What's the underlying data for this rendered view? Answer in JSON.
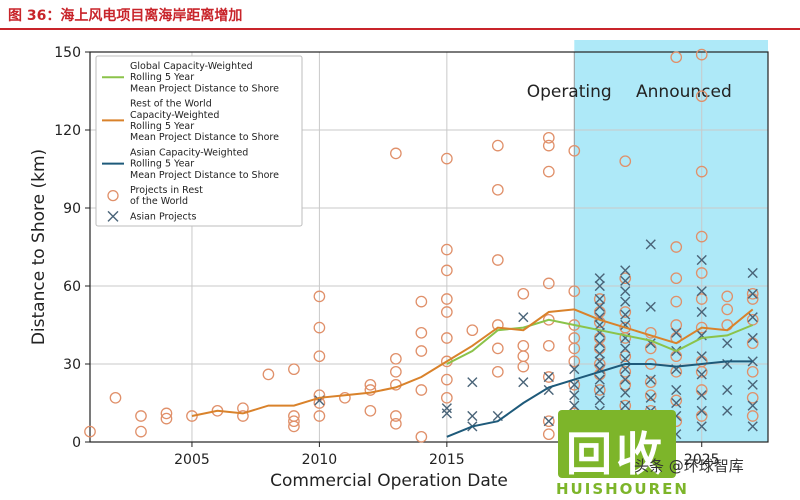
{
  "header": {
    "figure_title": "图 36：海上风电项目离海岸距离增加"
  },
  "colors": {
    "accent_red": "#c8242a",
    "announced_shade": "#aee9f8",
    "global_line": "#8bc34a",
    "row_line": "#d9822b",
    "asian_line": "#1e5a7a",
    "row_marker": "#e0906a",
    "asian_marker": "#4a6478"
  },
  "watermark": {
    "text": "回收",
    "sub": "HUISHOUREN",
    "caption": "头条 @环球智库"
  },
  "chart_data": {
    "type": "scatter",
    "title": "",
    "xlabel": "Commercial Operation Date",
    "ylabel": "Distance to Shore (km)",
    "xlim": [
      2001,
      2027.6
    ],
    "ylim": [
      0,
      150
    ],
    "xticks": [
      2005,
      2010,
      2015,
      2025
    ],
    "xtick_labels": [
      "2005",
      "2010",
      "2015",
      "2025"
    ],
    "yticks": [
      0,
      30,
      60,
      90,
      120,
      150
    ],
    "ytick_labels": [
      "0",
      "30",
      "60",
      "90",
      "120",
      "150"
    ],
    "grid": true,
    "legend_position": "top-left",
    "annotations": [
      {
        "text": "Operating",
        "x": 2019.8,
        "y": 135
      },
      {
        "text": "Announced",
        "x": 2024.3,
        "y": 135
      }
    ],
    "shaded_regions": [
      {
        "label": "Announced",
        "x_from": 2020.0,
        "x_to": 2027.6
      }
    ],
    "series": [
      {
        "name": "Global Capacity-Weighted Rolling 5 Year Mean Project Distance to Shore",
        "legend_lines": [
          "Global Capacity-Weighted",
          "Rolling 5 Year",
          "Mean Project Distance to Shore"
        ],
        "kind": "line",
        "color": "#8bc34a",
        "x": [
          2015,
          2016,
          2017,
          2018,
          2019,
          2020,
          2021,
          2022,
          2023,
          2024,
          2025,
          2026,
          2027
        ],
        "y": [
          30,
          35,
          43,
          44,
          47,
          45,
          43,
          41,
          39,
          35,
          40,
          41,
          45
        ]
      },
      {
        "name": "Rest of the World Capacity-Weighted Rolling 5 Year Mean Project Distance to Shore",
        "legend_lines": [
          "Rest of the World",
          "Capacity-Weighted",
          "Rolling 5 Year",
          "Mean Project Distance to Shore"
        ],
        "kind": "line",
        "color": "#d9822b",
        "x": [
          2005,
          2006,
          2007,
          2008,
          2009,
          2010,
          2011,
          2012,
          2013,
          2014,
          2015,
          2016,
          2017,
          2018,
          2019,
          2020,
          2021,
          2022,
          2023,
          2024,
          2025,
          2026,
          2027
        ],
        "y": [
          10,
          12,
          11,
          14,
          14,
          17,
          18,
          19,
          21,
          25,
          31,
          37,
          44,
          43,
          50,
          51,
          47,
          44,
          41,
          38,
          44,
          43,
          51
        ]
      },
      {
        "name": "Asian Capacity-Weighted Rolling 5 Year Mean Project Distance to Shore",
        "legend_lines": [
          "Asian Capacity-Weighted",
          "Rolling 5 Year",
          "Mean Project Distance to Shore"
        ],
        "kind": "line",
        "color": "#1e5a7a",
        "x": [
          2015,
          2016,
          2017,
          2018,
          2019,
          2020,
          2021,
          2022,
          2023,
          2024,
          2025,
          2026,
          2027
        ],
        "y": [
          2,
          6,
          8,
          15,
          21,
          24,
          27,
          30,
          30,
          29,
          30,
          31,
          31
        ]
      },
      {
        "name": "Projects in Rest of the World",
        "legend_lines": [
          "Projects in Rest",
          "of the World"
        ],
        "kind": "scatter",
        "marker": "circle",
        "color": "#e0906a",
        "points": [
          [
            2001.0,
            4
          ],
          [
            2002.0,
            17
          ],
          [
            2003.0,
            4
          ],
          [
            2003.0,
            10
          ],
          [
            2004.0,
            9
          ],
          [
            2004.0,
            11
          ],
          [
            2005.0,
            10
          ],
          [
            2006.0,
            12
          ],
          [
            2007.0,
            13
          ],
          [
            2007.0,
            10
          ],
          [
            2008.0,
            26
          ],
          [
            2009.0,
            28
          ],
          [
            2009.0,
            10
          ],
          [
            2009.0,
            8
          ],
          [
            2009.0,
            6
          ],
          [
            2010.0,
            56
          ],
          [
            2010.0,
            44
          ],
          [
            2010.0,
            33
          ],
          [
            2010.0,
            18
          ],
          [
            2010.0,
            15
          ],
          [
            2010.0,
            10
          ],
          [
            2011.0,
            17
          ],
          [
            2012.0,
            20
          ],
          [
            2012.0,
            12
          ],
          [
            2012.0,
            22
          ],
          [
            2013.0,
            111
          ],
          [
            2013.0,
            32
          ],
          [
            2013.0,
            27
          ],
          [
            2013.0,
            22
          ],
          [
            2013.0,
            10
          ],
          [
            2013.0,
            7
          ],
          [
            2014.0,
            54
          ],
          [
            2014.0,
            42
          ],
          [
            2014.0,
            35
          ],
          [
            2014.0,
            20
          ],
          [
            2014.0,
            2
          ],
          [
            2015.0,
            109
          ],
          [
            2015.0,
            74
          ],
          [
            2015.0,
            66
          ],
          [
            2015.0,
            55
          ],
          [
            2015.0,
            50
          ],
          [
            2015.0,
            40
          ],
          [
            2015.0,
            31
          ],
          [
            2015.0,
            24
          ],
          [
            2015.0,
            17
          ],
          [
            2016.0,
            43
          ],
          [
            2017.0,
            114
          ],
          [
            2017.0,
            97
          ],
          [
            2017.0,
            70
          ],
          [
            2017.0,
            45
          ],
          [
            2017.0,
            36
          ],
          [
            2017.0,
            27
          ],
          [
            2018.0,
            57
          ],
          [
            2018.0,
            37
          ],
          [
            2018.0,
            33
          ],
          [
            2018.0,
            29
          ],
          [
            2019.0,
            117
          ],
          [
            2019.0,
            114
          ],
          [
            2019.0,
            104
          ],
          [
            2019.0,
            61
          ],
          [
            2019.0,
            47
          ],
          [
            2019.0,
            37
          ],
          [
            2019.0,
            25
          ],
          [
            2019.0,
            8
          ],
          [
            2019.0,
            3
          ],
          [
            2020.0,
            112
          ],
          [
            2020.0,
            58
          ],
          [
            2020.0,
            45
          ],
          [
            2020.0,
            40
          ],
          [
            2020.0,
            36
          ],
          [
            2020.0,
            31
          ],
          [
            2020.0,
            22
          ],
          [
            2020.0,
            11
          ],
          [
            2021.0,
            55
          ],
          [
            2021.0,
            50
          ],
          [
            2021.0,
            46
          ],
          [
            2021.0,
            40
          ],
          [
            2021.0,
            36
          ],
          [
            2021.0,
            30
          ],
          [
            2021.0,
            26
          ],
          [
            2021.0,
            20
          ],
          [
            2021.0,
            10
          ],
          [
            2021.0,
            4
          ],
          [
            2022.0,
            108
          ],
          [
            2022.0,
            63
          ],
          [
            2022.0,
            50
          ],
          [
            2022.0,
            44
          ],
          [
            2022.0,
            40
          ],
          [
            2022.0,
            33
          ],
          [
            2022.0,
            27
          ],
          [
            2022.0,
            22
          ],
          [
            2022.0,
            14
          ],
          [
            2022.0,
            6
          ],
          [
            2023.0,
            42
          ],
          [
            2023.0,
            36
          ],
          [
            2023.0,
            30
          ],
          [
            2023.0,
            23
          ],
          [
            2023.0,
            18
          ],
          [
            2023.0,
            12
          ],
          [
            2024.0,
            148
          ],
          [
            2024.0,
            75
          ],
          [
            2024.0,
            63
          ],
          [
            2024.0,
            54
          ],
          [
            2024.0,
            45
          ],
          [
            2024.0,
            40
          ],
          [
            2024.0,
            33
          ],
          [
            2024.0,
            27
          ],
          [
            2024.0,
            16
          ],
          [
            2024.0,
            8
          ],
          [
            2025.0,
            149
          ],
          [
            2025.0,
            133
          ],
          [
            2025.0,
            104
          ],
          [
            2025.0,
            79
          ],
          [
            2025.0,
            65
          ],
          [
            2025.0,
            55
          ],
          [
            2025.0,
            44
          ],
          [
            2025.0,
            31
          ],
          [
            2025.0,
            27
          ],
          [
            2025.0,
            20
          ],
          [
            2025.0,
            10
          ],
          [
            2026.0,
            56
          ],
          [
            2026.0,
            51
          ],
          [
            2026.0,
            45
          ],
          [
            2027.0,
            57
          ],
          [
            2027.0,
            55
          ],
          [
            2027.0,
            47
          ],
          [
            2027.0,
            38
          ],
          [
            2027.0,
            27
          ],
          [
            2027.0,
            17
          ],
          [
            2027.0,
            10
          ]
        ]
      },
      {
        "name": "Asian Projects",
        "legend_lines": [
          "Asian Projects"
        ],
        "kind": "scatter",
        "marker": "x",
        "color": "#4a6478",
        "points": [
          [
            2010.0,
            16
          ],
          [
            2015.0,
            11
          ],
          [
            2015.0,
            13
          ],
          [
            2016.0,
            23
          ],
          [
            2016.0,
            6
          ],
          [
            2016.0,
            10
          ],
          [
            2017.0,
            10
          ],
          [
            2018.0,
            23
          ],
          [
            2018.0,
            48
          ],
          [
            2019.0,
            25
          ],
          [
            2019.0,
            20
          ],
          [
            2019.0,
            8
          ],
          [
            2020.0,
            28
          ],
          [
            2020.0,
            22
          ],
          [
            2020.0,
            18
          ],
          [
            2020.0,
            14
          ],
          [
            2020.0,
            10
          ],
          [
            2020.0,
            6
          ],
          [
            2021.0,
            63
          ],
          [
            2021.0,
            60
          ],
          [
            2021.0,
            55
          ],
          [
            2021.0,
            52
          ],
          [
            2021.0,
            48
          ],
          [
            2021.0,
            45
          ],
          [
            2021.0,
            42
          ],
          [
            2021.0,
            38
          ],
          [
            2021.0,
            34
          ],
          [
            2021.0,
            31
          ],
          [
            2021.0,
            28
          ],
          [
            2021.0,
            24
          ],
          [
            2021.0,
            20
          ],
          [
            2021.0,
            16
          ],
          [
            2021.0,
            12
          ],
          [
            2021.0,
            8
          ],
          [
            2021.0,
            4
          ],
          [
            2022.0,
            66
          ],
          [
            2022.0,
            62
          ],
          [
            2022.0,
            58
          ],
          [
            2022.0,
            54
          ],
          [
            2022.0,
            49
          ],
          [
            2022.0,
            45
          ],
          [
            2022.0,
            40
          ],
          [
            2022.0,
            36
          ],
          [
            2022.0,
            32
          ],
          [
            2022.0,
            28
          ],
          [
            2022.0,
            24
          ],
          [
            2022.0,
            19
          ],
          [
            2022.0,
            14
          ],
          [
            2022.0,
            10
          ],
          [
            2022.0,
            6
          ],
          [
            2023.0,
            76
          ],
          [
            2023.0,
            52
          ],
          [
            2023.0,
            38
          ],
          [
            2023.0,
            24
          ],
          [
            2023.0,
            17
          ],
          [
            2023.0,
            12
          ],
          [
            2023.0,
            5
          ],
          [
            2024.0,
            42
          ],
          [
            2024.0,
            35
          ],
          [
            2024.0,
            28
          ],
          [
            2024.0,
            20
          ],
          [
            2024.0,
            15
          ],
          [
            2024.0,
            10
          ],
          [
            2024.0,
            3
          ],
          [
            2025.0,
            70
          ],
          [
            2025.0,
            58
          ],
          [
            2025.0,
            50
          ],
          [
            2025.0,
            41
          ],
          [
            2025.0,
            33
          ],
          [
            2025.0,
            26
          ],
          [
            2025.0,
            18
          ],
          [
            2025.0,
            12
          ],
          [
            2025.0,
            6
          ],
          [
            2026.0,
            38
          ],
          [
            2026.0,
            30
          ],
          [
            2026.0,
            20
          ],
          [
            2026.0,
            12
          ],
          [
            2027.0,
            65
          ],
          [
            2027.0,
            57
          ],
          [
            2027.0,
            48
          ],
          [
            2027.0,
            40
          ],
          [
            2027.0,
            31
          ],
          [
            2027.0,
            22
          ],
          [
            2027.0,
            14
          ],
          [
            2027.0,
            6
          ]
        ]
      }
    ]
  }
}
